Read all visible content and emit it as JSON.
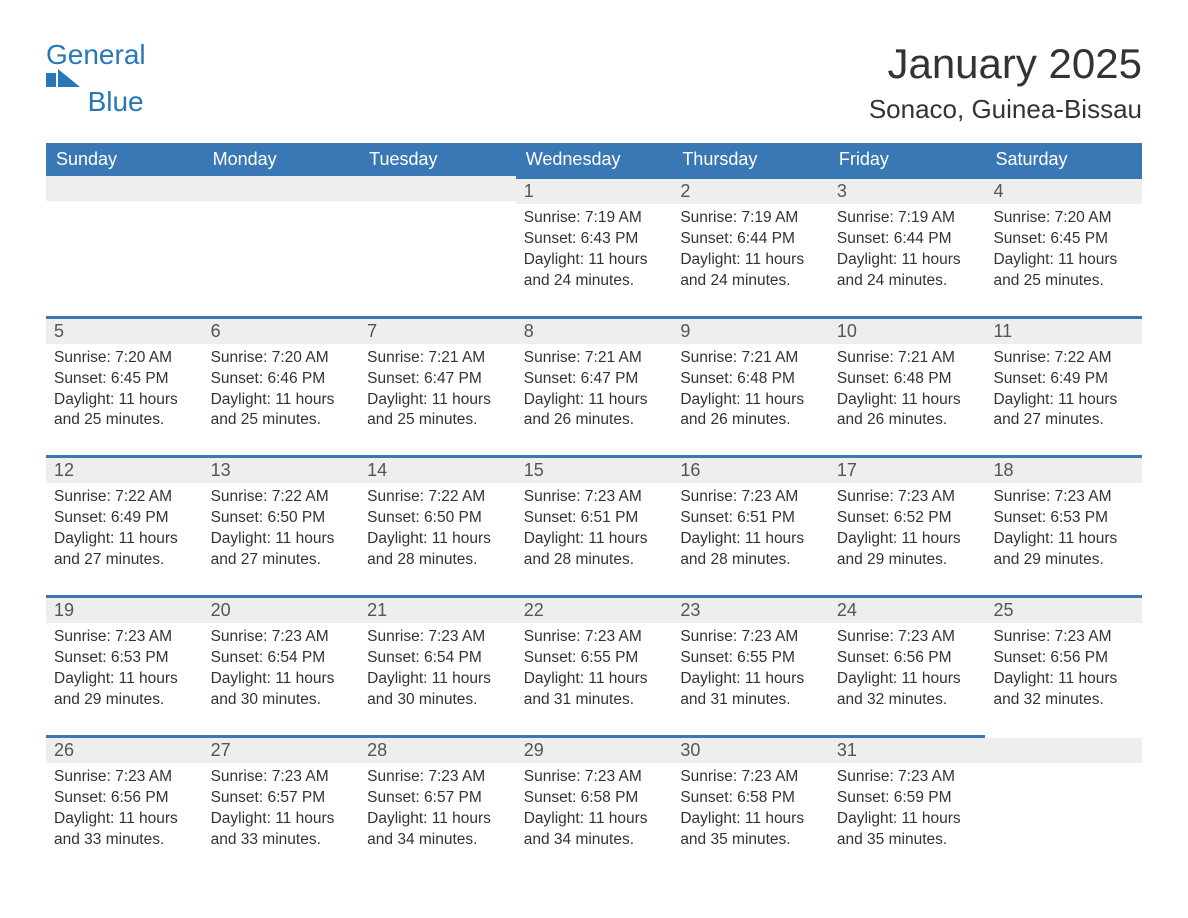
{
  "colors": {
    "brand_blue": "#2a77b8",
    "header_blue": "#3a78b5",
    "header_text": "#ffffff",
    "daynum_bg": "#eeeeee",
    "text": "#333333",
    "page_bg": "#ffffff"
  },
  "logo": {
    "line1": "General",
    "line2": "Blue"
  },
  "title": "January 2025",
  "location": "Sonaco, Guinea-Bissau",
  "weekdays": [
    "Sunday",
    "Monday",
    "Tuesday",
    "Wednesday",
    "Thursday",
    "Friday",
    "Saturday"
  ],
  "labels": {
    "sunrise_prefix": "Sunrise: ",
    "sunset_prefix": "Sunset: ",
    "daylight_prefix": "Daylight: "
  },
  "weeks": [
    [
      {
        "blank": true
      },
      {
        "blank": true
      },
      {
        "blank": true
      },
      {
        "day": 1,
        "sunrise": "7:19 AM",
        "sunset": "6:43 PM",
        "daylight": "11 hours and 24 minutes."
      },
      {
        "day": 2,
        "sunrise": "7:19 AM",
        "sunset": "6:44 PM",
        "daylight": "11 hours and 24 minutes."
      },
      {
        "day": 3,
        "sunrise": "7:19 AM",
        "sunset": "6:44 PM",
        "daylight": "11 hours and 24 minutes."
      },
      {
        "day": 4,
        "sunrise": "7:20 AM",
        "sunset": "6:45 PM",
        "daylight": "11 hours and 25 minutes."
      }
    ],
    [
      {
        "day": 5,
        "sunrise": "7:20 AM",
        "sunset": "6:45 PM",
        "daylight": "11 hours and 25 minutes."
      },
      {
        "day": 6,
        "sunrise": "7:20 AM",
        "sunset": "6:46 PM",
        "daylight": "11 hours and 25 minutes."
      },
      {
        "day": 7,
        "sunrise": "7:21 AM",
        "sunset": "6:47 PM",
        "daylight": "11 hours and 25 minutes."
      },
      {
        "day": 8,
        "sunrise": "7:21 AM",
        "sunset": "6:47 PM",
        "daylight": "11 hours and 26 minutes."
      },
      {
        "day": 9,
        "sunrise": "7:21 AM",
        "sunset": "6:48 PM",
        "daylight": "11 hours and 26 minutes."
      },
      {
        "day": 10,
        "sunrise": "7:21 AM",
        "sunset": "6:48 PM",
        "daylight": "11 hours and 26 minutes."
      },
      {
        "day": 11,
        "sunrise": "7:22 AM",
        "sunset": "6:49 PM",
        "daylight": "11 hours and 27 minutes."
      }
    ],
    [
      {
        "day": 12,
        "sunrise": "7:22 AM",
        "sunset": "6:49 PM",
        "daylight": "11 hours and 27 minutes."
      },
      {
        "day": 13,
        "sunrise": "7:22 AM",
        "sunset": "6:50 PM",
        "daylight": "11 hours and 27 minutes."
      },
      {
        "day": 14,
        "sunrise": "7:22 AM",
        "sunset": "6:50 PM",
        "daylight": "11 hours and 28 minutes."
      },
      {
        "day": 15,
        "sunrise": "7:23 AM",
        "sunset": "6:51 PM",
        "daylight": "11 hours and 28 minutes."
      },
      {
        "day": 16,
        "sunrise": "7:23 AM",
        "sunset": "6:51 PM",
        "daylight": "11 hours and 28 minutes."
      },
      {
        "day": 17,
        "sunrise": "7:23 AM",
        "sunset": "6:52 PM",
        "daylight": "11 hours and 29 minutes."
      },
      {
        "day": 18,
        "sunrise": "7:23 AM",
        "sunset": "6:53 PM",
        "daylight": "11 hours and 29 minutes."
      }
    ],
    [
      {
        "day": 19,
        "sunrise": "7:23 AM",
        "sunset": "6:53 PM",
        "daylight": "11 hours and 29 minutes."
      },
      {
        "day": 20,
        "sunrise": "7:23 AM",
        "sunset": "6:54 PM",
        "daylight": "11 hours and 30 minutes."
      },
      {
        "day": 21,
        "sunrise": "7:23 AM",
        "sunset": "6:54 PM",
        "daylight": "11 hours and 30 minutes."
      },
      {
        "day": 22,
        "sunrise": "7:23 AM",
        "sunset": "6:55 PM",
        "daylight": "11 hours and 31 minutes."
      },
      {
        "day": 23,
        "sunrise": "7:23 AM",
        "sunset": "6:55 PM",
        "daylight": "11 hours and 31 minutes."
      },
      {
        "day": 24,
        "sunrise": "7:23 AM",
        "sunset": "6:56 PM",
        "daylight": "11 hours and 32 minutes."
      },
      {
        "day": 25,
        "sunrise": "7:23 AM",
        "sunset": "6:56 PM",
        "daylight": "11 hours and 32 minutes."
      }
    ],
    [
      {
        "day": 26,
        "sunrise": "7:23 AM",
        "sunset": "6:56 PM",
        "daylight": "11 hours and 33 minutes."
      },
      {
        "day": 27,
        "sunrise": "7:23 AM",
        "sunset": "6:57 PM",
        "daylight": "11 hours and 33 minutes."
      },
      {
        "day": 28,
        "sunrise": "7:23 AM",
        "sunset": "6:57 PM",
        "daylight": "11 hours and 34 minutes."
      },
      {
        "day": 29,
        "sunrise": "7:23 AM",
        "sunset": "6:58 PM",
        "daylight": "11 hours and 34 minutes."
      },
      {
        "day": 30,
        "sunrise": "7:23 AM",
        "sunset": "6:58 PM",
        "daylight": "11 hours and 35 minutes."
      },
      {
        "day": 31,
        "sunrise": "7:23 AM",
        "sunset": "6:59 PM",
        "daylight": "11 hours and 35 minutes."
      },
      {
        "blank": true
      }
    ]
  ]
}
